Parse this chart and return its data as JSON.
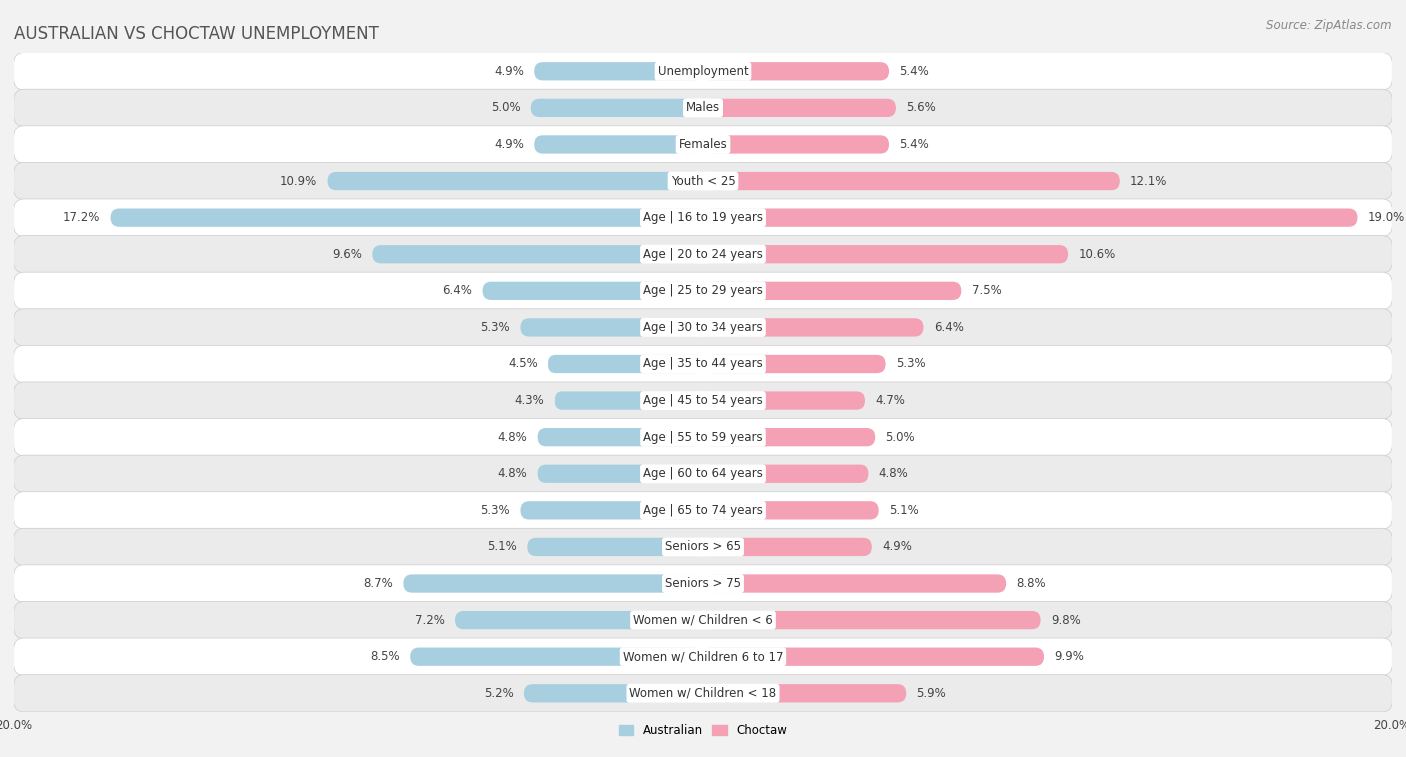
{
  "title": "AUSTRALIAN VS CHOCTAW UNEMPLOYMENT",
  "source": "Source: ZipAtlas.com",
  "categories": [
    "Unemployment",
    "Males",
    "Females",
    "Youth < 25",
    "Age | 16 to 19 years",
    "Age | 20 to 24 years",
    "Age | 25 to 29 years",
    "Age | 30 to 34 years",
    "Age | 35 to 44 years",
    "Age | 45 to 54 years",
    "Age | 55 to 59 years",
    "Age | 60 to 64 years",
    "Age | 65 to 74 years",
    "Seniors > 65",
    "Seniors > 75",
    "Women w/ Children < 6",
    "Women w/ Children 6 to 17",
    "Women w/ Children < 18"
  ],
  "australian": [
    4.9,
    5.0,
    4.9,
    10.9,
    17.2,
    9.6,
    6.4,
    5.3,
    4.5,
    4.3,
    4.8,
    4.8,
    5.3,
    5.1,
    8.7,
    7.2,
    8.5,
    5.2
  ],
  "choctaw": [
    5.4,
    5.6,
    5.4,
    12.1,
    19.0,
    10.6,
    7.5,
    6.4,
    5.3,
    4.7,
    5.0,
    4.8,
    5.1,
    4.9,
    8.8,
    9.8,
    9.9,
    5.9
  ],
  "australian_color": "#a8cfe0",
  "choctaw_color": "#f4a0b5",
  "bar_height": 0.5,
  "xlim": 20.0,
  "x_axis_label_val": "20.0%",
  "bg_color": "#f2f2f2",
  "row_bg_even": "#ffffff",
  "row_bg_odd": "#ebebeb",
  "title_fontsize": 12,
  "source_fontsize": 8.5,
  "label_fontsize": 8.5,
  "value_fontsize": 8.5
}
